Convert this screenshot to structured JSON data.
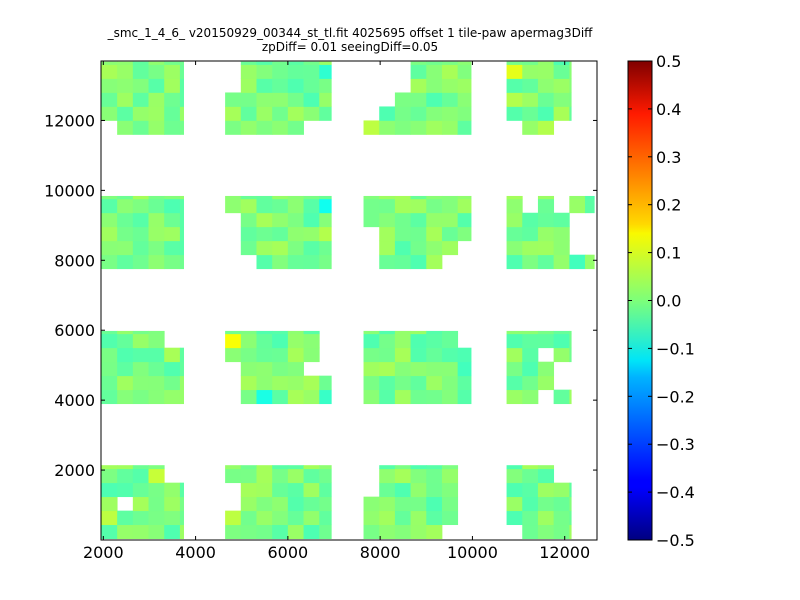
{
  "chart_data": {
    "type": "heatmap",
    "title_lines": [
      "_smc_1_4_6_ v20150929_00344_st_tl.fit 4025695 offset 1 tile-paw apermag3Diff",
      "zpDiff= 0.01 seeingDiff=0.05"
    ],
    "xlabel": "",
    "ylabel": "",
    "xlim": [
      1950,
      12700
    ],
    "ylim": [
      0,
      13700
    ],
    "xticks": [
      2000,
      4000,
      6000,
      8000,
      10000,
      12000
    ],
    "yticks": [
      2000,
      4000,
      6000,
      8000,
      10000,
      12000
    ],
    "colorbar": {
      "colormap": "jet",
      "vmin": -0.5,
      "vmax": 0.5,
      "ticks": [
        "0.5",
        "0.4",
        "0.3",
        "0.2",
        "0.1",
        "0.0",
        "−0.1",
        "−0.2",
        "−0.3",
        "−0.4",
        "−0.5"
      ]
    },
    "cell_size": [
      340,
      400
    ],
    "clusters": [
      {
        "x": [
          1960,
          3740
        ],
        "y": [
          11600,
          13680
        ]
      },
      {
        "x": [
          4640,
          6940
        ],
        "y": [
          11600,
          13680
        ]
      },
      {
        "x": [
          7640,
          9970
        ],
        "y": [
          11600,
          13680
        ]
      },
      {
        "x": [
          10740,
          12140
        ],
        "y": [
          11600,
          13680
        ]
      },
      {
        "x": [
          1960,
          3740
        ],
        "y": [
          7760,
          9840
        ]
      },
      {
        "x": [
          4640,
          6940
        ],
        "y": [
          7760,
          9840
        ]
      },
      {
        "x": [
          7640,
          9970
        ],
        "y": [
          7760,
          9840
        ]
      },
      {
        "x": [
          10740,
          12640
        ],
        "y": [
          7760,
          9840
        ]
      },
      {
        "x": [
          1960,
          3740
        ],
        "y": [
          3900,
          5980
        ]
      },
      {
        "x": [
          4640,
          6940
        ],
        "y": [
          3900,
          5980
        ]
      },
      {
        "x": [
          7640,
          9970
        ],
        "y": [
          3900,
          5980
        ]
      },
      {
        "x": [
          10740,
          12140
        ],
        "y": [
          3900,
          5980
        ]
      },
      {
        "x": [
          1960,
          3740
        ],
        "y": [
          40,
          2140
        ]
      },
      {
        "x": [
          4640,
          6940
        ],
        "y": [
          40,
          2140
        ]
      },
      {
        "x": [
          7640,
          9970
        ],
        "y": [
          40,
          2140
        ]
      },
      {
        "x": [
          10740,
          12140
        ],
        "y": [
          40,
          2140
        ]
      }
    ],
    "holes": [
      {
        "x": [
          3740,
          4040
        ],
        "y": [
          11600,
          13100
        ]
      },
      {
        "x": [
          4640,
          4980
        ],
        "y": [
          12800,
          13680
        ]
      },
      {
        "x": [
          6270,
          6940
        ],
        "y": [
          11600,
          12000
        ]
      },
      {
        "x": [
          7640,
          7990
        ],
        "y": [
          12000,
          13680
        ]
      },
      {
        "x": [
          7990,
          8330
        ],
        "y": [
          12400,
          13680
        ]
      },
      {
        "x": [
          8330,
          8660
        ],
        "y": [
          12800,
          13680
        ]
      },
      {
        "x": [
          1960,
          2300
        ],
        "y": [
          11600,
          12000
        ]
      },
      {
        "x": [
          10740,
          11080
        ],
        "y": [
          11600,
          12000
        ]
      },
      {
        "x": [
          11750,
          12140
        ],
        "y": [
          11600,
          12000
        ]
      },
      {
        "x": [
          4640,
          4980
        ],
        "y": [
          7760,
          9440
        ]
      },
      {
        "x": [
          4980,
          5320
        ],
        "y": [
          7760,
          8160
        ]
      },
      {
        "x": [
          7640,
          7990
        ],
        "y": [
          8160,
          9040
        ]
      },
      {
        "x": [
          7640,
          8000
        ],
        "y": [
          7760,
          8160
        ]
      },
      {
        "x": [
          9320,
          9970
        ],
        "y": [
          7760,
          8160
        ]
      },
      {
        "x": [
          9660,
          9970
        ],
        "y": [
          8160,
          8560
        ]
      },
      {
        "x": [
          11080,
          11400
        ],
        "y": [
          9440,
          9840
        ]
      },
      {
        "x": [
          11750,
          11970
        ],
        "y": [
          9440,
          9840
        ]
      },
      {
        "x": [
          12140,
          12640
        ],
        "y": [
          8160,
          9440
        ]
      },
      {
        "x": [
          3740,
          3950
        ],
        "y": [
          3900,
          4700
        ]
      },
      {
        "x": [
          3310,
          3740
        ],
        "y": [
          5560,
          5980
        ]
      },
      {
        "x": [
          4640,
          4980
        ],
        "y": [
          3900,
          5150
        ]
      },
      {
        "x": [
          6270,
          6590
        ],
        "y": [
          4700,
          5150
        ]
      },
      {
        "x": [
          6590,
          6940
        ],
        "y": [
          4700,
          5980
        ]
      },
      {
        "x": [
          9660,
          9970
        ],
        "y": [
          5560,
          5980
        ]
      },
      {
        "x": [
          11400,
          11750
        ],
        "y": [
          3900,
          4300
        ]
      },
      {
        "x": [
          11400,
          11750
        ],
        "y": [
          5150,
          5560
        ]
      },
      {
        "x": [
          11750,
          12140
        ],
        "y": [
          4300,
          5150
        ]
      },
      {
        "x": [
          2300,
          2560
        ],
        "y": [
          860,
          1240
        ]
      },
      {
        "x": [
          3310,
          3740
        ],
        "y": [
          1660,
          2140
        ]
      },
      {
        "x": [
          4640,
          4980
        ],
        "y": [
          900,
          1700
        ]
      },
      {
        "x": [
          7640,
          7990
        ],
        "y": [
          1320,
          2140
        ]
      },
      {
        "x": [
          9320,
          9660
        ],
        "y": [
          40,
          480
        ]
      },
      {
        "x": [
          9660,
          9970
        ],
        "y": [
          40,
          2140
        ]
      },
      {
        "x": [
          11750,
          12140
        ],
        "y": [
          1660,
          2140
        ]
      },
      {
        "x": [
          10740,
          11080
        ],
        "y": [
          40,
          440
        ]
      }
    ],
    "highlights": [
      {
        "x": 10740,
        "y": 13280,
        "value": 0.1
      },
      {
        "x": 10740,
        "y": 12480,
        "value": 0.05
      },
      {
        "x": 11400,
        "y": 11600,
        "value": 0.05
      },
      {
        "x": 7640,
        "y": 13080,
        "value": 0.05
      },
      {
        "x": 7640,
        "y": 11600,
        "value": 0.06
      },
      {
        "x": 6600,
        "y": 13280,
        "value": -0.08
      },
      {
        "x": 6600,
        "y": 9440,
        "value": -0.11
      },
      {
        "x": 6600,
        "y": 8560,
        "value": 0.05
      },
      {
        "x": 11750,
        "y": 9440,
        "value": -0.07
      },
      {
        "x": 12140,
        "y": 7760,
        "value": -0.06
      },
      {
        "x": 12300,
        "y": 7760,
        "value": 0.02
      },
      {
        "x": 4640,
        "y": 5560,
        "value": 0.12
      },
      {
        "x": 5320,
        "y": 3900,
        "value": -0.1
      },
      {
        "x": 6600,
        "y": 3900,
        "value": -0.07
      },
      {
        "x": 9660,
        "y": 4700,
        "value": -0.06
      },
      {
        "x": 9660,
        "y": 5150,
        "value": -0.05
      },
      {
        "x": 12000,
        "y": 3900,
        "value": 0.03
      },
      {
        "x": 2880,
        "y": 1740,
        "value": 0.07
      },
      {
        "x": 1960,
        "y": 1320,
        "value": -0.05
      },
      {
        "x": 1960,
        "y": 440,
        "value": 0.06
      },
      {
        "x": 4640,
        "y": 440,
        "value": 0.06
      }
    ],
    "typical_value_range": [
      -0.05,
      0.04
    ]
  }
}
